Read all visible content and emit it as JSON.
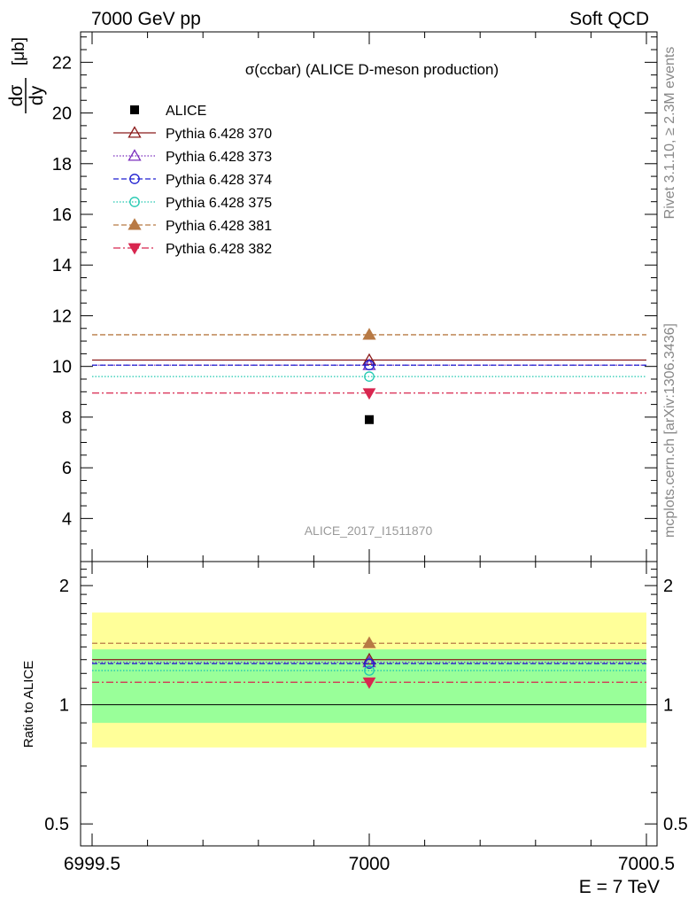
{
  "header": {
    "left": "7000 GeV pp",
    "right": "Soft QCD"
  },
  "side_labels": {
    "rivet": "Rivet 3.1.10, ≥ 2.3M events",
    "mcplots": "mcplots.cern.ch [arXiv:1306.3436]"
  },
  "chart_data": {
    "type": "line",
    "title": "σ(ccbar) (ALICE D-meson production)",
    "ylabel_num": "dσ",
    "ylabel_den": "dy",
    "ylabel_unit": "[μb]",
    "ratio_ylabel": "Ratio to ALICE",
    "xlabel": "E = 7 TeV",
    "watermark": "ALICE_2017_I1511870",
    "xlim": [
      6999.5,
      7000.5
    ],
    "ylim": [
      2.3,
      23.2
    ],
    "ratio_ylim": [
      0.44,
      2.3
    ],
    "x_ticks": [
      "6999.5",
      "7000",
      "7000.5"
    ],
    "y_ticks": [
      "4",
      "6",
      "8",
      "10",
      "12",
      "14",
      "16",
      "18",
      "20",
      "22"
    ],
    "ratio_ticks": [
      "0.5",
      "1",
      "2"
    ],
    "data": {
      "name": "ALICE",
      "x": 7000,
      "y": 7.9
    },
    "ratio_bands": {
      "inner": [
        0.9,
        1.38
      ],
      "outer": [
        0.78,
        1.71
      ]
    },
    "series": [
      {
        "name": "Pythia 6.428 370",
        "value": 10.25,
        "ratio": 1.3,
        "color": "#8b1a1a",
        "dash": "",
        "marker": "triangle-open"
      },
      {
        "name": "Pythia 6.428 373",
        "value": 10.05,
        "ratio": 1.28,
        "color": "#7b2fbe",
        "dash": "1.5,2",
        "marker": "triangle-open"
      },
      {
        "name": "Pythia 6.428 374",
        "value": 10.05,
        "ratio": 1.27,
        "color": "#1f1fd0",
        "dash": "6,3",
        "marker": "circle-open"
      },
      {
        "name": "Pythia 6.428 375",
        "value": 9.6,
        "ratio": 1.22,
        "color": "#20c8b0",
        "dash": "1.5,2",
        "marker": "circle-open"
      },
      {
        "name": "Pythia 6.428 381",
        "value": 11.25,
        "ratio": 1.43,
        "color": "#b87a45",
        "dash": "6,3",
        "marker": "triangle-filled"
      },
      {
        "name": "Pythia 6.428 382",
        "value": 8.95,
        "ratio": 1.14,
        "color": "#d8264f",
        "dash": "8,3,2,3",
        "marker": "triangle-down-filled"
      }
    ]
  }
}
